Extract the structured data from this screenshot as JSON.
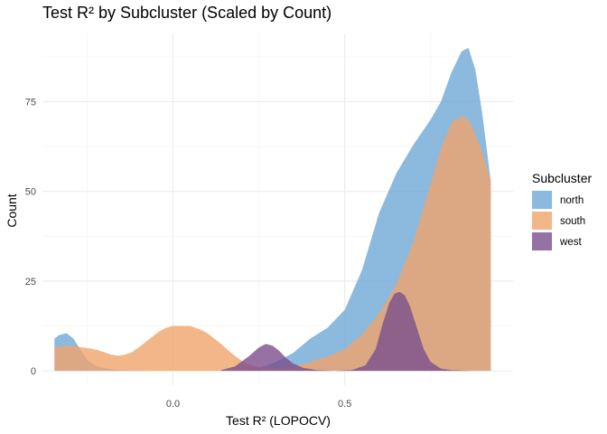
{
  "chart_data": {
    "type": "area",
    "title": "Test R² by Subcluster (Scaled by Count)",
    "xlabel": "Test R² (LOPOCV)",
    "ylabel": "Count",
    "xlim": [
      -0.38,
      0.99
    ],
    "ylim": [
      -4,
      94
    ],
    "x_ticks": [
      0.0,
      0.5
    ],
    "x_tick_labels": [
      "0.0",
      "0.5"
    ],
    "y_ticks": [
      0,
      25,
      50,
      75
    ],
    "y_tick_labels": [
      "0",
      "25",
      "50",
      "75"
    ],
    "grid": true,
    "legend": {
      "title": "Subcluster",
      "placement": "right"
    },
    "series": [
      {
        "name": "north",
        "color": "#6fa8d6",
        "x": [
          -0.345,
          -0.33,
          -0.31,
          -0.29,
          -0.27,
          -0.25,
          -0.22,
          -0.18,
          -0.12,
          -0.05,
          0.0,
          0.05,
          0.1,
          0.15,
          0.2,
          0.25,
          0.3,
          0.35,
          0.4,
          0.45,
          0.5,
          0.55,
          0.6,
          0.65,
          0.7,
          0.75,
          0.78,
          0.81,
          0.84,
          0.86,
          0.88,
          0.9,
          0.925
        ],
        "y": [
          9,
          10,
          10.5,
          9,
          6,
          3,
          1.2,
          0.4,
          0.1,
          0,
          0,
          0,
          0,
          0,
          0.1,
          0.8,
          2.5,
          5,
          9,
          12,
          17,
          28,
          44,
          55,
          63,
          70,
          75,
          83,
          89,
          90,
          84,
          72,
          53
        ]
      },
      {
        "name": "south",
        "color": "#f0a46c",
        "x": [
          -0.345,
          -0.32,
          -0.3,
          -0.28,
          -0.26,
          -0.24,
          -0.22,
          -0.2,
          -0.18,
          -0.16,
          -0.14,
          -0.12,
          -0.1,
          -0.08,
          -0.06,
          -0.04,
          -0.02,
          0.0,
          0.02,
          0.05,
          0.08,
          0.1,
          0.12,
          0.14,
          0.16,
          0.18,
          0.2,
          0.22,
          0.25,
          0.3,
          0.35,
          0.4,
          0.45,
          0.5,
          0.55,
          0.6,
          0.65,
          0.7,
          0.75,
          0.78,
          0.81,
          0.84,
          0.86,
          0.88,
          0.9,
          0.925
        ],
        "y": [
          6.5,
          7,
          7,
          6.8,
          6.5,
          6.2,
          5.8,
          5.2,
          4.5,
          4.2,
          4.5,
          5.2,
          6.5,
          8,
          9.5,
          11,
          12,
          12.5,
          12.5,
          12.5,
          11.5,
          10.5,
          9,
          7.5,
          5.8,
          4.2,
          2.8,
          1.8,
          1,
          0.8,
          1.2,
          2.5,
          4,
          6,
          10,
          16,
          24,
          36,
          52,
          62,
          69,
          71,
          70,
          66,
          61,
          53
        ]
      },
      {
        "name": "west",
        "color": "#7b4f8c",
        "x": [
          0.14,
          0.18,
          0.22,
          0.25,
          0.27,
          0.29,
          0.31,
          0.33,
          0.35,
          0.38,
          0.42,
          0.47,
          0.52,
          0.56,
          0.59,
          0.61,
          0.63,
          0.645,
          0.66,
          0.675,
          0.69,
          0.71,
          0.73,
          0.75,
          0.78,
          0.81,
          0.84,
          0.87,
          0.9,
          0.925
        ],
        "y": [
          0.2,
          1.2,
          4,
          6.5,
          7.5,
          7,
          5.5,
          3.5,
          2,
          0.8,
          0.2,
          0,
          0.2,
          1.5,
          6,
          13,
          19,
          21.5,
          22,
          21,
          18,
          12,
          6,
          2.5,
          0.6,
          0.2,
          0.1,
          0,
          0,
          0
        ]
      }
    ]
  }
}
